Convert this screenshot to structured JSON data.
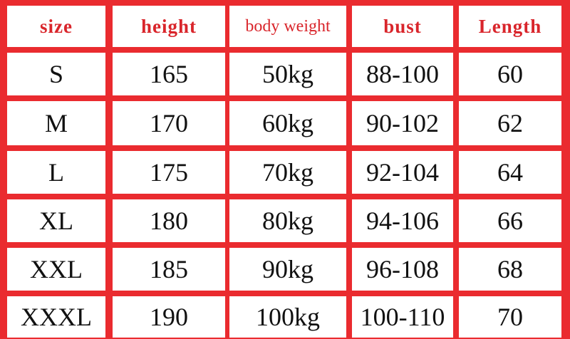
{
  "table": {
    "header": [
      "size",
      "height",
      "body weight",
      "bust",
      "Length"
    ],
    "rows": [
      [
        "S",
        "165",
        "50kg",
        "88-100",
        "60"
      ],
      [
        "M",
        "170",
        "60kg",
        "90-102",
        "62"
      ],
      [
        "L",
        "175",
        "70kg",
        "92-104",
        "64"
      ],
      [
        "XL",
        "180",
        "80kg",
        "94-106",
        "66"
      ],
      [
        "XXL",
        "185",
        "90kg",
        "96-108",
        "68"
      ],
      [
        "XXXL",
        "190",
        "100kg",
        "100-110",
        "70"
      ]
    ]
  }
}
